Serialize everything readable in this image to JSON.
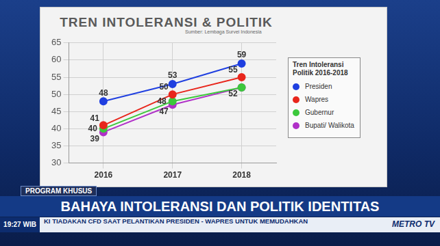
{
  "chart_data": {
    "type": "line",
    "title": "TREN INTOLERANSI & POLITIK",
    "subtitle": "Sumber: Lembaga Survei Indonesia",
    "legend_title": "Tren Intoleransi Politik 2016-2018",
    "legend": "right",
    "categories": [
      "2016",
      "2017",
      "2018"
    ],
    "series": [
      {
        "name": "Presiden",
        "color": "#1f3fe0",
        "values": [
          48,
          53,
          59
        ],
        "marker": "circle"
      },
      {
        "name": "Wapres",
        "color": "#e8261c",
        "values": [
          41,
          50,
          55
        ],
        "marker": "circle"
      },
      {
        "name": "Gubernur",
        "color": "#3cc83c",
        "values": [
          40,
          48,
          52
        ],
        "value_labels": [
          "40",
          "48",
          null
        ],
        "marker": "circle"
      },
      {
        "name": "Bupati/ Walikota",
        "color": "#b030c8",
        "values": [
          39,
          47,
          52
        ],
        "marker": "circle"
      }
    ],
    "ylim": [
      30,
      65
    ],
    "yticks": [
      30,
      35,
      40,
      45,
      50,
      55,
      60,
      65
    ],
    "grid": true,
    "data_labels": true
  },
  "program_tag": "PROGRAM KHUSUS",
  "headline": "BAHAYA INTOLERANSI DAN POLITIK IDENTITAS",
  "ticker": {
    "time": "19:27 WIB",
    "text": "KI TIADAKAN CFD SAAT PELANTIKAN PRESIDEN - WAPRES UNTUK MEMUDAHKAN"
  },
  "channel": "METRO TV"
}
